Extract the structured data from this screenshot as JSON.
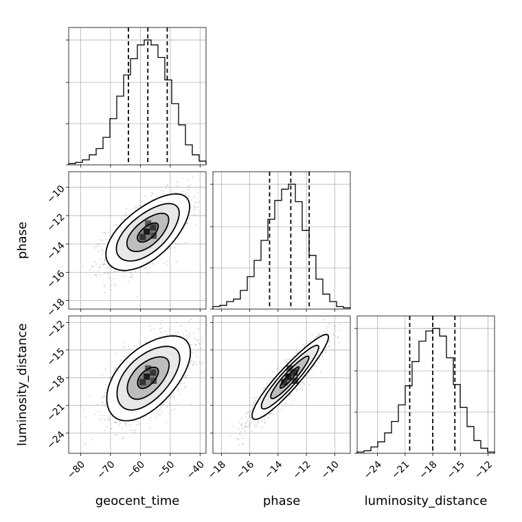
{
  "chart_data": {
    "type": "corner",
    "parameters": [
      "geocent_time",
      "phase",
      "luminosity_distance"
    ],
    "axis_ranges": {
      "geocent_time": [
        -84,
        -38
      ],
      "phase": [
        -18.6,
        -8.9
      ],
      "luminosity_distance": [
        -26.2,
        -11.3
      ]
    },
    "ticks": {
      "geocent_time": [
        -80,
        -70,
        -60,
        -50,
        -40
      ],
      "phase": [
        -18,
        -16,
        -14,
        -12,
        -10
      ],
      "luminosity_distance": [
        -24,
        -21,
        -18,
        -15,
        -12
      ]
    },
    "tick_labels": {
      "geocent_time": [
        "−80",
        "−70",
        "−60",
        "−50",
        "−40"
      ],
      "phase": [
        "−18",
        "−16",
        "−14",
        "−12",
        "−10"
      ],
      "luminosity_distance": [
        "−24",
        "−21",
        "−18",
        "−15",
        "−12"
      ]
    },
    "marginals": [
      {
        "parameter": "geocent_time",
        "quantiles": [
          -64.0,
          -57.5,
          -51.0
        ],
        "bin_edges": [
          -84,
          -81.7,
          -79.4,
          -77.1,
          -74.8,
          -72.5,
          -70.2,
          -67.9,
          -65.6,
          -63.3,
          -61,
          -58.7,
          -56.4,
          -54.1,
          -51.8,
          -49.5,
          -47.2,
          -44.9,
          -42.6,
          -40.3,
          -38
        ],
        "counts": [
          0.01,
          0.02,
          0.04,
          0.08,
          0.13,
          0.22,
          0.37,
          0.55,
          0.72,
          0.85,
          0.96,
          1.0,
          0.96,
          0.86,
          0.68,
          0.49,
          0.32,
          0.16,
          0.08,
          0.03
        ],
        "y_ticks": [
          0,
          0.33,
          0.66,
          1.0
        ]
      },
      {
        "parameter": "phase",
        "quantiles": [
          -14.6,
          -13.1,
          -11.8
        ],
        "bin_edges": [
          -18.6,
          -18.115,
          -17.63,
          -17.145,
          -16.66,
          -16.175,
          -15.69,
          -15.205,
          -14.72,
          -14.235,
          -13.75,
          -13.265,
          -12.78,
          -12.295,
          -11.81,
          -11.325,
          -10.84,
          -10.355,
          -9.87,
          -9.385,
          -8.9
        ],
        "counts": [
          0.02,
          0.03,
          0.06,
          0.08,
          0.15,
          0.26,
          0.39,
          0.55,
          0.72,
          0.87,
          0.96,
          1.0,
          0.86,
          0.63,
          0.43,
          0.24,
          0.12,
          0.06,
          0.02,
          0.01
        ],
        "y_ticks": [
          0,
          0.33,
          0.66,
          1.0
        ]
      },
      {
        "parameter": "luminosity_distance",
        "quantiles": [
          -20.5,
          -18.0,
          -15.6
        ],
        "bin_edges": [
          -26.2,
          -25.455,
          -24.71,
          -23.965,
          -23.22,
          -22.475,
          -21.73,
          -20.985,
          -20.24,
          -19.495,
          -18.75,
          -18.005,
          -17.26,
          -16.515,
          -15.77,
          -15.025,
          -14.28,
          -13.535,
          -12.79,
          -12.045,
          -11.3
        ],
        "counts": [
          0.01,
          0.02,
          0.05,
          0.09,
          0.16,
          0.25,
          0.38,
          0.53,
          0.72,
          0.88,
          0.96,
          0.98,
          0.92,
          0.75,
          0.54,
          0.36,
          0.21,
          0.1,
          0.04,
          0.01
        ],
        "y_ticks": [
          0,
          0.33,
          0.66,
          1.0
        ]
      }
    ],
    "joints": [
      {
        "x": "geocent_time",
        "y": "phase",
        "mean": [
          -57.5,
          -13.2
        ],
        "sd": [
          7.0,
          1.35
        ],
        "rho": 0.62,
        "contour_levels_sigma": [
          0.5,
          1.0,
          1.5,
          2.0
        ]
      },
      {
        "x": "geocent_time",
        "y": "luminosity_distance",
        "mean": [
          -57.5,
          -18.0
        ],
        "sd": [
          7.0,
          2.3
        ],
        "rho": 0.55,
        "contour_levels_sigma": [
          0.5,
          1.0,
          1.5,
          2.0
        ]
      },
      {
        "x": "phase",
        "y": "luminosity_distance",
        "mean": [
          -13.2,
          -18.0
        ],
        "sd": [
          1.35,
          2.3
        ],
        "rho": 0.93,
        "contour_levels_sigma": [
          0.5,
          1.0,
          1.5,
          2.0
        ]
      }
    ],
    "grid": true
  }
}
